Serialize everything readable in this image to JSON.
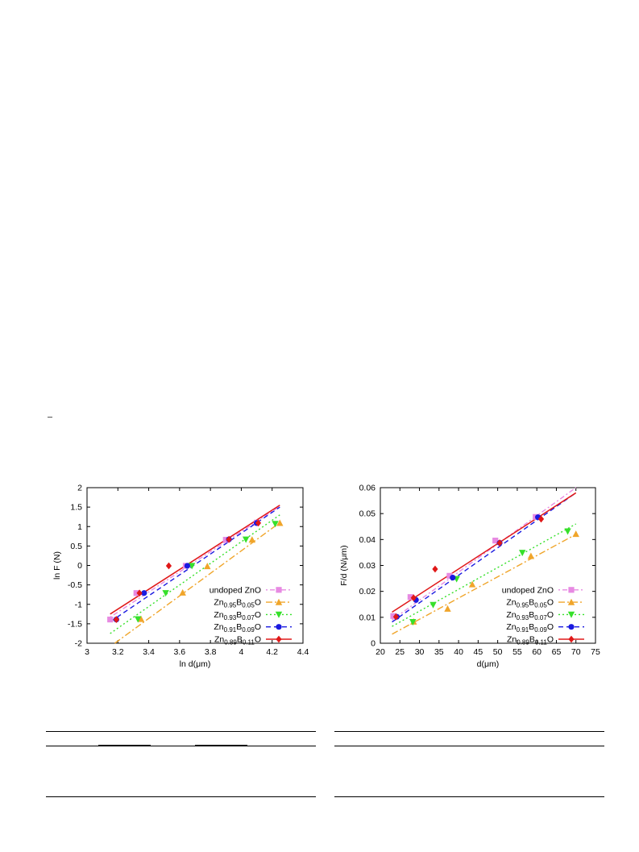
{
  "page": {},
  "colors": {
    "undoped": "#e78ae2",
    "b005": "#f0a52a",
    "b007": "#36e02a",
    "b009": "#1a1ae0",
    "b011": "#e01818"
  },
  "chart_data": [
    {
      "type": "scatter",
      "xlabel": "ln d(μm)",
      "ylabel": "ln F (N)",
      "xlim": [
        3,
        4.4
      ],
      "ylim": [
        -2,
        2
      ],
      "xticks": [
        "3",
        "3.2",
        "3.4",
        "3.6",
        "3.8",
        "4",
        "4.2",
        "4.4"
      ],
      "yticks": [
        "-2",
        "-1.5",
        "-1",
        "-0.5",
        "0",
        "0.5",
        "1",
        "1.5",
        "2"
      ],
      "legend_position": "bottom-right",
      "series": [
        {
          "name": "undoped ZnO",
          "key": "undoped",
          "marker": "square",
          "dash": "2,3,6,3",
          "x": [
            3.15,
            3.32,
            3.64,
            3.9,
            4.1
          ],
          "y": [
            -1.39,
            -0.71,
            -0.01,
            0.66,
            1.1
          ],
          "fit": [
            [
              3.15,
              -1.33
            ],
            [
              4.25,
              1.52
            ]
          ]
        },
        {
          "name": "Zn0.95B0.05O",
          "sub": [
            "0.95",
            "0.05"
          ],
          "key": "b005",
          "marker": "triangle-up",
          "dash": "8,3,2,3",
          "x": [
            3.35,
            3.62,
            3.78,
            4.07,
            4.25
          ],
          "y": [
            -1.38,
            -0.7,
            -0.02,
            0.66,
            1.09
          ],
          "fit": [
            [
              3.18,
              -2.0
            ],
            [
              4.25,
              1.1
            ]
          ]
        },
        {
          "name": "Zn0.93B0.07O",
          "sub": [
            "0.93",
            "0.07"
          ],
          "key": "b007",
          "marker": "triangle-down",
          "dash": "2,3",
          "x": [
            3.33,
            3.51,
            3.68,
            4.03,
            4.22
          ],
          "y": [
            -1.38,
            -0.71,
            -0.01,
            0.67,
            1.07
          ],
          "fit": [
            [
              3.15,
              -1.75
            ],
            [
              4.25,
              1.3
            ]
          ]
        },
        {
          "name": "Zn0.91B0.09O",
          "sub": [
            "0.91",
            "0.09"
          ],
          "key": "b009",
          "marker": "circle",
          "dash": "6,4",
          "x": [
            3.19,
            3.37,
            3.65,
            3.92,
            4.1
          ],
          "y": [
            -1.39,
            -0.71,
            -0.01,
            0.67,
            1.09
          ],
          "fit": [
            [
              3.15,
              -1.45
            ],
            [
              4.25,
              1.5
            ]
          ]
        },
        {
          "name": "Zn0.89B0.11O",
          "sub": [
            "0.89",
            "0.11"
          ],
          "key": "b011",
          "marker": "diamond",
          "dash": "",
          "x": [
            3.19,
            3.34,
            3.53,
            3.92,
            4.11
          ],
          "y": [
            -1.39,
            -0.71,
            -0.01,
            0.67,
            1.09
          ],
          "fit": [
            [
              3.15,
              -1.25
            ],
            [
              4.25,
              1.55
            ]
          ]
        }
      ]
    },
    {
      "type": "scatter",
      "xlabel": "d(μm)",
      "ylabel": "F/d (N/μm)",
      "xlim": [
        20,
        75
      ],
      "ylim": [
        0,
        0.06
      ],
      "xticks": [
        "20",
        "25",
        "30",
        "35",
        "40",
        "45",
        "50",
        "55",
        "60",
        "65",
        "70",
        "75"
      ],
      "yticks": [
        "0",
        "0.01",
        "0.02",
        "0.03",
        "0.04",
        "0.05",
        "0.06"
      ],
      "legend_position": "bottom-right",
      "series": [
        {
          "name": "undoped ZnO",
          "key": "undoped",
          "marker": "square",
          "dash": "2,3,6,3",
          "x": [
            23.3,
            27.7,
            37.7,
            49.4,
            59.7
          ],
          "y": [
            0.0105,
            0.0178,
            0.026,
            0.0396,
            0.0487
          ],
          "fit": [
            [
              23,
              0.009
            ],
            [
              70,
              0.06
            ]
          ]
        },
        {
          "name": "Zn0.95B0.05O",
          "sub": [
            "0.95",
            "0.05"
          ],
          "key": "b005",
          "marker": "triangle-up",
          "dash": "8,3,2,3",
          "x": [
            28.5,
            37.2,
            43.5,
            58.5,
            70.0
          ],
          "y": [
            0.0083,
            0.0133,
            0.0227,
            0.0336,
            0.0421
          ],
          "fit": [
            [
              23,
              0.0035
            ],
            [
              70,
              0.042
            ]
          ]
        },
        {
          "name": "Zn0.93B0.07O",
          "sub": [
            "0.93",
            "0.07"
          ],
          "key": "b007",
          "marker": "triangle-down",
          "dash": "2,3",
          "x": [
            28.3,
            33.5,
            39.5,
            56.3,
            67.9
          ],
          "y": [
            0.0082,
            0.0148,
            0.0248,
            0.0349,
            0.0432
          ],
          "fit": [
            [
              23,
              0.0065
            ],
            [
              70,
              0.046
            ]
          ]
        },
        {
          "name": "Zn0.91B0.09O",
          "sub": [
            "0.91",
            "0.09"
          ],
          "key": "b009",
          "marker": "circle",
          "dash": "6,4",
          "x": [
            24.2,
            29.1,
            38.5,
            50.5,
            60.3
          ],
          "y": [
            0.0102,
            0.0167,
            0.0253,
            0.0387,
            0.0486
          ],
          "fit": [
            [
              23,
              0.0082
            ],
            [
              70,
              0.058
            ]
          ]
        },
        {
          "name": "Zn0.89B0.11O",
          "sub": [
            "0.89",
            "0.11"
          ],
          "key": "b011",
          "marker": "diamond",
          "dash": "",
          "x": [
            24.0,
            28.5,
            34.0,
            50.5,
            61.1
          ],
          "y": [
            0.0102,
            0.0175,
            0.0286,
            0.0387,
            0.0479
          ],
          "fit": [
            [
              23,
              0.012
            ],
            [
              70,
              0.058
            ]
          ]
        }
      ]
    }
  ]
}
